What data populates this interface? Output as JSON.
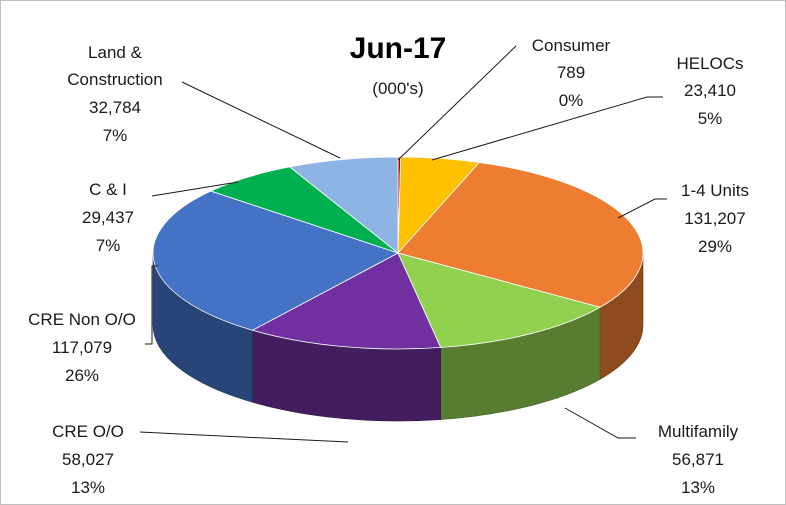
{
  "chart_data": {
    "type": "pie",
    "title": "Jun-17",
    "subtitle": "(000's)",
    "slices": [
      {
        "name": "Consumer",
        "value": 789,
        "value_label": "789",
        "percent_label": "0%",
        "color": "#c00000"
      },
      {
        "name": "HELOCs",
        "value": 23410,
        "value_label": "23,410",
        "percent_label": "5%",
        "color": "#ffc000"
      },
      {
        "name": "1-4 Units",
        "value": 131207,
        "value_label": "131,207",
        "percent_label": "29%",
        "color": "#ed7d31"
      },
      {
        "name": "Multifamily",
        "value": 56871,
        "value_label": "56,871",
        "percent_label": "13%",
        "color": "#92d050"
      },
      {
        "name": "CRE O/O",
        "value": 58027,
        "value_label": "58,027",
        "percent_label": "13%",
        "color": "#7030a0"
      },
      {
        "name": "CRE Non O/O",
        "value": 117079,
        "value_label": "117,079",
        "percent_label": "26%",
        "color": "#4472c4"
      },
      {
        "name": "C & I",
        "value": 29437,
        "value_label": "29,437",
        "percent_label": "7%",
        "color": "#00b050"
      },
      {
        "name": "Land & Construction",
        "value": 32784,
        "value_label": "32,784",
        "percent_label": "7%",
        "color": "#8eb4e3"
      }
    ]
  }
}
